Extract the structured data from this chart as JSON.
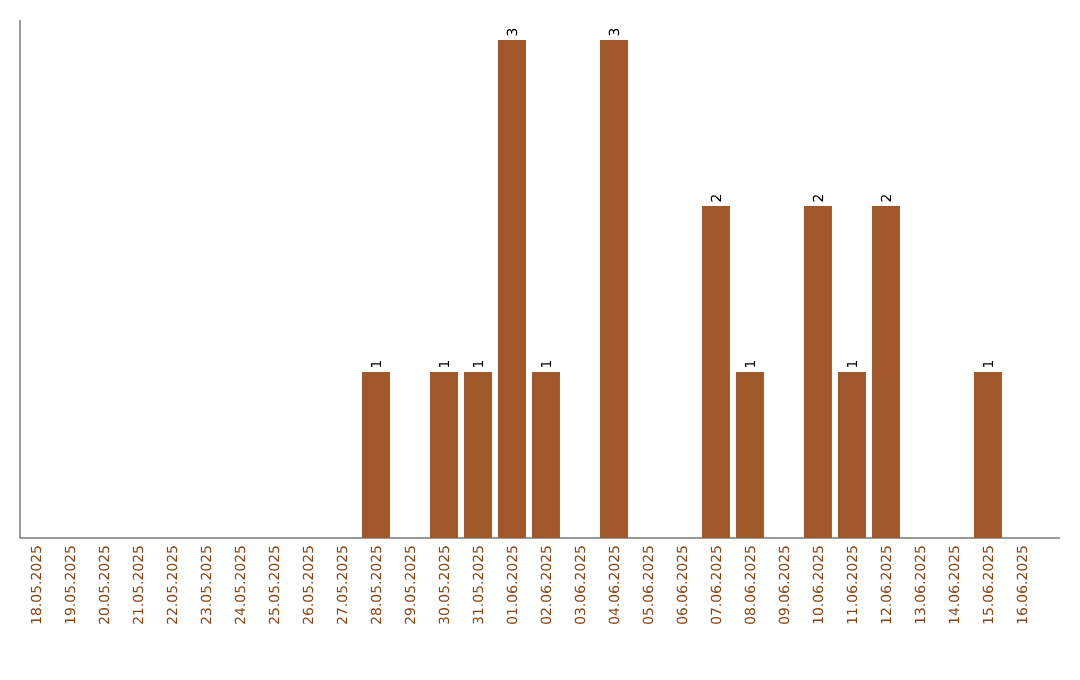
{
  "chart_data": {
    "type": "bar",
    "categories": [
      "18.05.2025",
      "19.05.2025",
      "20.05.2025",
      "21.05.2025",
      "22.05.2025",
      "23.05.2025",
      "24.05.2025",
      "25.05.2025",
      "26.05.2025",
      "27.05.2025",
      "28.05.2025",
      "29.05.2025",
      "30.05.2025",
      "31.05.2025",
      "01.06.2025",
      "02.06.2025",
      "03.06.2025",
      "04.06.2025",
      "05.06.2025",
      "06.06.2025",
      "07.06.2025",
      "08.06.2025",
      "09.06.2025",
      "10.06.2025",
      "11.06.2025",
      "12.06.2025",
      "13.06.2025",
      "14.06.2025",
      "15.06.2025",
      "16.06.2025"
    ],
    "values": [
      0,
      0,
      0,
      0,
      0,
      0,
      0,
      0,
      0,
      0,
      1,
      0,
      1,
      1,
      3,
      1,
      0,
      3,
      0,
      0,
      2,
      1,
      0,
      2,
      1,
      2,
      0,
      0,
      1,
      0
    ],
    "value_labels": [
      null,
      null,
      null,
      null,
      null,
      null,
      null,
      null,
      null,
      null,
      "1",
      null,
      "1",
      "1",
      "3",
      "1",
      null,
      "3",
      null,
      null,
      "2",
      "1",
      null,
      "2",
      "1",
      "2",
      null,
      null,
      "1",
      null
    ],
    "color": "#a0572a",
    "ylim": [
      0,
      3.12
    ],
    "tick_labels": "x"
  }
}
